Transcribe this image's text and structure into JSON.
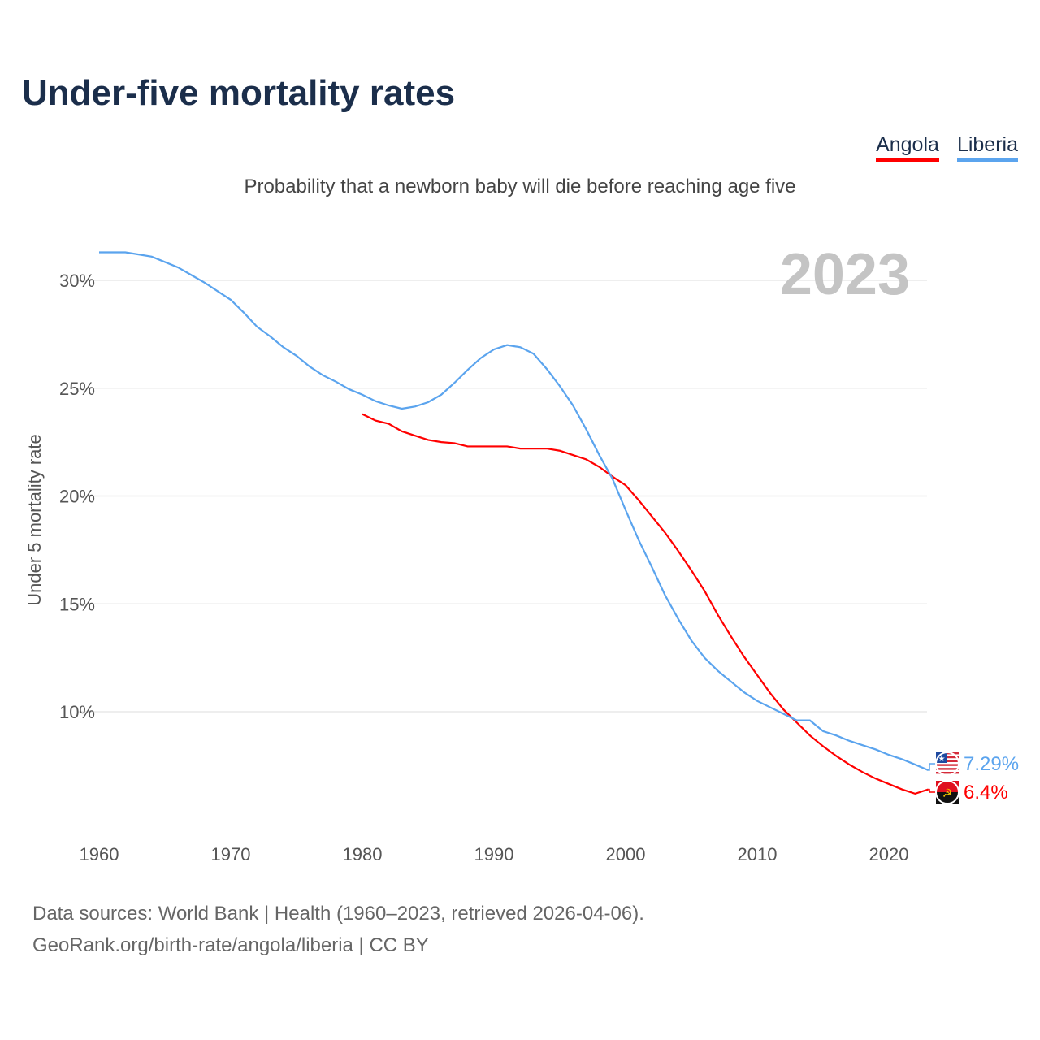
{
  "title": "Under-five mortality rates",
  "subtitle": "Probability that a newborn baby will die before reaching age five",
  "footer": {
    "line1": "Data sources: World Bank | Health (1960–2023, retrieved 2026-04-06).",
    "line2": "GeoRank.org/birth-rate/angola/liberia | CC BY"
  },
  "chart_data": {
    "type": "line",
    "title": "Under-five mortality rates",
    "ylabel": "Under 5 mortality rate",
    "xlabel": "",
    "year_label": "2023",
    "xlim": [
      1960,
      2023
    ],
    "ylim": [
      5,
      31.5
    ],
    "yticks": [
      10,
      15,
      20,
      25,
      30
    ],
    "ytick_labels": [
      "10%",
      "15%",
      "20%",
      "25%",
      "30%"
    ],
    "xticks": [
      1960,
      1970,
      1980,
      1990,
      2000,
      2010,
      2020
    ],
    "xtick_labels": [
      "1960",
      "1970",
      "1980",
      "1990",
      "2000",
      "2010",
      "2020"
    ],
    "legend": "top-right",
    "series": [
      {
        "name": "Angola",
        "color": "#ff0000",
        "flag": "angola-flag",
        "end_label": "6.4%",
        "x": [
          1980,
          1981,
          1982,
          1983,
          1984,
          1985,
          1986,
          1987,
          1988,
          1989,
          1990,
          1991,
          1992,
          1993,
          1994,
          1995,
          1996,
          1997,
          1998,
          1999,
          2000,
          2001,
          2002,
          2003,
          2004,
          2005,
          2006,
          2007,
          2008,
          2009,
          2010,
          2011,
          2012,
          2013,
          2014,
          2015,
          2016,
          2017,
          2018,
          2019,
          2020,
          2021,
          2022,
          2023
        ],
        "values": [
          23.8,
          23.5,
          23.35,
          23.0,
          22.8,
          22.6,
          22.5,
          22.45,
          22.3,
          22.3,
          22.3,
          22.3,
          22.2,
          22.2,
          22.2,
          22.1,
          21.9,
          21.7,
          21.35,
          20.9,
          20.5,
          19.8,
          19.05,
          18.3,
          17.45,
          16.55,
          15.6,
          14.5,
          13.5,
          12.55,
          11.7,
          10.85,
          10.1,
          9.5,
          8.9,
          8.4,
          7.95,
          7.55,
          7.2,
          6.9,
          6.65,
          6.4,
          6.2,
          6.4
        ]
      },
      {
        "name": "Liberia",
        "color": "#5ba4ee",
        "flag": "liberia-flag",
        "end_label": "7.29%",
        "x": [
          1960,
          1961,
          1962,
          1963,
          1964,
          1965,
          1966,
          1967,
          1968,
          1969,
          1970,
          1971,
          1972,
          1973,
          1974,
          1975,
          1976,
          1977,
          1978,
          1979,
          1980,
          1981,
          1982,
          1983,
          1984,
          1985,
          1986,
          1987,
          1988,
          1989,
          1990,
          1991,
          1992,
          1993,
          1994,
          1995,
          1996,
          1997,
          1998,
          1999,
          2000,
          2001,
          2002,
          2003,
          2004,
          2005,
          2006,
          2007,
          2008,
          2009,
          2010,
          2011,
          2012,
          2013,
          2014,
          2015,
          2016,
          2017,
          2018,
          2019,
          2020,
          2021,
          2022,
          2023
        ],
        "values": [
          31.3,
          31.3,
          31.3,
          31.2,
          31.1,
          30.85,
          30.6,
          30.25,
          29.9,
          29.5,
          29.1,
          28.5,
          27.85,
          27.4,
          26.9,
          26.5,
          26.0,
          25.6,
          25.3,
          24.95,
          24.7,
          24.4,
          24.2,
          24.05,
          24.15,
          24.35,
          24.7,
          25.25,
          25.85,
          26.4,
          26.8,
          27.0,
          26.9,
          26.6,
          25.9,
          25.1,
          24.2,
          23.1,
          21.9,
          20.8,
          19.35,
          17.95,
          16.7,
          15.4,
          14.3,
          13.3,
          12.5,
          11.9,
          11.4,
          10.9,
          10.5,
          10.2,
          9.9,
          9.6,
          9.6,
          9.1,
          8.9,
          8.65,
          8.45,
          8.25,
          8.0,
          7.8,
          7.55,
          7.29
        ]
      }
    ]
  }
}
